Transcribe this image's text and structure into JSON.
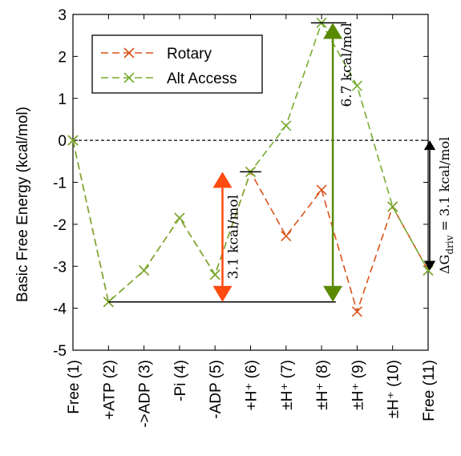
{
  "chart_data": {
    "type": "line",
    "ylabel": "Basic Free Energy (kcal/mol)",
    "xlabel": "",
    "ylim": [
      -5,
      3
    ],
    "yticks": [
      3,
      2,
      1,
      0,
      -1,
      -2,
      -3,
      -4,
      -5
    ],
    "categories": [
      "Free (1)",
      "+ATP (2)",
      "->ADP (3)",
      "-Pi (4)",
      "-ADP (5)",
      "+H⁺ (6)",
      "±H⁺ (7)",
      "±H⁺ (8)",
      "±H⁺ (9)",
      "±H⁺ (10)",
      "Free (11)"
    ],
    "legend_position": "top-left",
    "grid": false,
    "series": [
      {
        "name": "Rotary",
        "color": "#d95319",
        "values": [
          0,
          -3.85,
          -3.1,
          -1.85,
          -3.2,
          -0.75,
          -2.28,
          -1.18,
          -4.08,
          -1.58,
          -3.1
        ]
      },
      {
        "name": "Alt Access",
        "color": "#77ac30",
        "values": [
          0,
          -3.85,
          -3.1,
          -1.85,
          -3.2,
          -0.75,
          0.35,
          2.8,
          1.3,
          -1.58,
          -3.1
        ]
      }
    ],
    "zero_line": 0,
    "annotations": [
      {
        "label": "3.1 kcal/mol",
        "color": "#ff4a10",
        "x_index": 5,
        "from": -3.85,
        "to": -0.75
      },
      {
        "label": "6.7 kcal/mol",
        "color": "#5a8a00",
        "x_index": 7,
        "from": -3.85,
        "to": 2.8
      },
      {
        "label_main": "ΔG",
        "label_sub": "driv",
        "label_tail": " = 3.1 kcal/mol",
        "color": "#000000",
        "from": 0,
        "to": -3.1
      }
    ],
    "reference_lines": [
      {
        "y": -3.85,
        "from_index": 1,
        "to_index": 7.4
      },
      {
        "y": -0.75,
        "from_index": 4.7,
        "to_index": 5.3
      },
      {
        "y": 2.8,
        "from_index": 6.7,
        "to_index": 7.7
      }
    ]
  }
}
